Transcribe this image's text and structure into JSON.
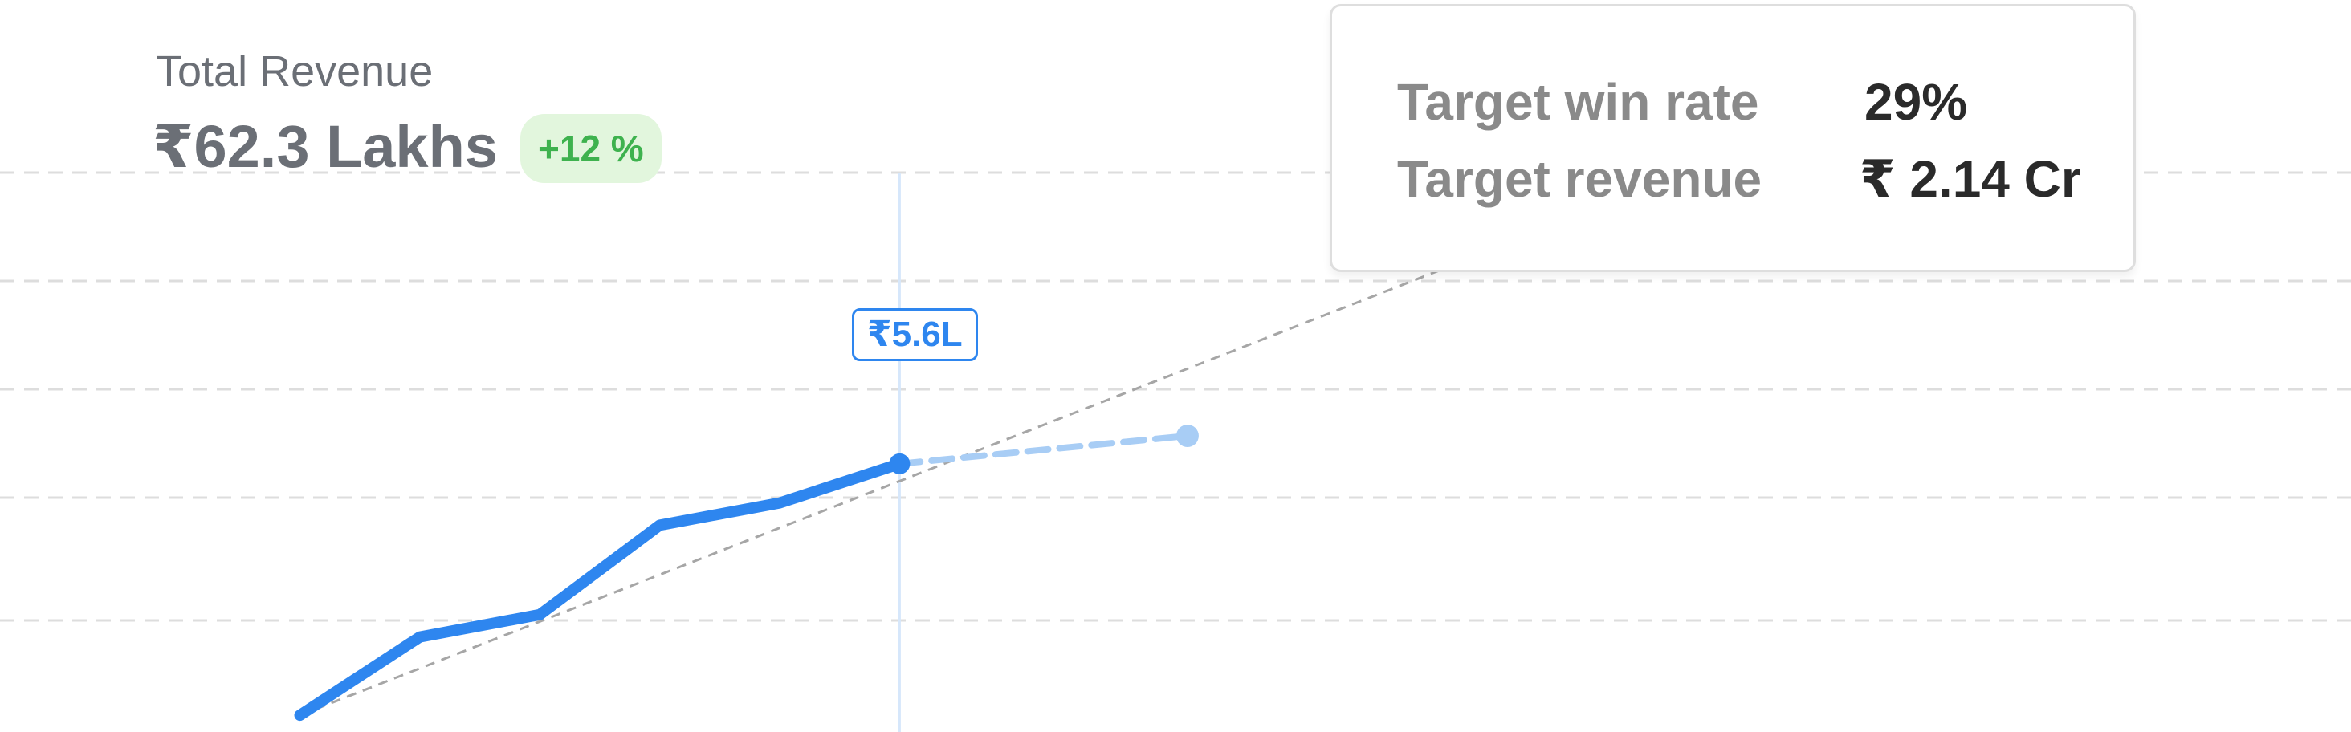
{
  "header": {
    "label": "Total Revenue",
    "value": "₹62.3 Lakhs",
    "change_badge": "+12 %"
  },
  "target_card": {
    "rows": [
      {
        "label": "Target win rate",
        "value": "29%"
      },
      {
        "label": "Target revenue",
        "value": "₹ 2.14 Cr"
      }
    ]
  },
  "colors": {
    "actual_line": "#2e86ef",
    "projection": "#a8cdf5",
    "target_line": "#a6a6a6",
    "gridline": "#dddddd",
    "badge_text": "#3eb24e",
    "badge_bg": "#e2f6dd"
  },
  "chart_data": {
    "type": "line",
    "title": "",
    "xlabel": "",
    "ylabel": "",
    "grid": true,
    "series": [
      {
        "role": "actual",
        "style": "solid",
        "x": [
          1,
          2,
          3,
          4,
          5,
          6
        ],
        "values": [
          0.0,
          1.4,
          1.8,
          3.4,
          3.8,
          4.5
        ]
      },
      {
        "role": "projection",
        "style": "dashed",
        "x": [
          6,
          8.4
        ],
        "values": [
          4.5,
          5.0
        ]
      },
      {
        "role": "target",
        "style": "dashed",
        "x": [
          1,
          11.5
        ],
        "values": [
          0.0,
          8.8
        ]
      }
    ],
    "highlight": {
      "x": 6,
      "value": 4.5,
      "label": "₹5.6L"
    },
    "ylim": [
      -0.3,
      12.8
    ],
    "xlim": [
      -1.5,
      18.1
    ]
  }
}
